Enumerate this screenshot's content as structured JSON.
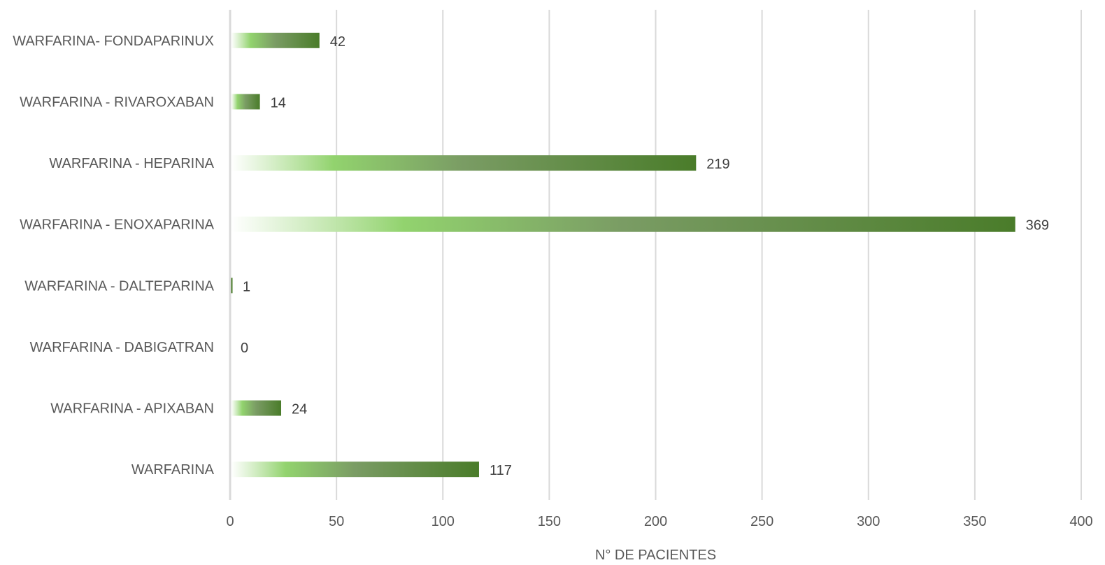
{
  "chart_data": {
    "type": "bar",
    "orientation": "horizontal",
    "categories": [
      "WARFARINA",
      "WARFARINA - APIXABAN",
      "WARFARINA - DABIGATRAN",
      "WARFARINA - DALTEPARINA",
      "WARFARINA - ENOXAPARINA",
      "WARFARINA - HEPARINA",
      "WARFARINA - RIVAROXABAN",
      "WARFARINA- FONDAPARINUX"
    ],
    "values": [
      117,
      24,
      0,
      1,
      369,
      219,
      14,
      42
    ],
    "data_labels": [
      "117",
      "24",
      "0",
      "1",
      "369",
      "219",
      "14",
      "42"
    ],
    "title": "",
    "xlabel": "N° DE PACIENTES",
    "ylabel": "",
    "xlim": [
      0,
      400
    ],
    "x_ticks": [
      0,
      50,
      100,
      150,
      200,
      250,
      300,
      350,
      400
    ],
    "x_tick_labels": [
      "0",
      "50",
      "100",
      "150",
      "200",
      "250",
      "300",
      "350",
      "400"
    ],
    "grid": "vertical",
    "legend": "none",
    "colors": {
      "bar_start": "#ffffff",
      "bar_mid_light": "#92d36e",
      "bar_mid": "#7a9c64",
      "bar_end": "#4a7c2a",
      "grid": "#d9d9d9",
      "axis": "#d9d9d9"
    }
  }
}
